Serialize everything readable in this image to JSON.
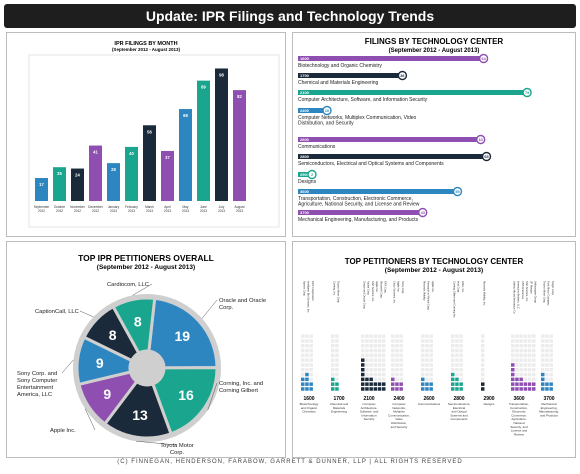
{
  "page": {
    "title": "Update: IPR Filings and Technology Trends",
    "footer": "(C) FINNEGAN, HENDERSON, FARABOW, GARRETT & DUNNER, LLP | ALL RIGHTS RESERVED"
  },
  "colors": {
    "blue": "#2e86c1",
    "teal": "#1aa58f",
    "navy": "#1b2a3a",
    "purple": "#8e4fb0"
  },
  "chart_data": [
    {
      "type": "bar",
      "title": "IPR FILINGS BY MONTH",
      "subtitle": "(September 2012 - August 2013)",
      "categories": [
        "September 2012",
        "October 2012",
        "November 2012",
        "December 2012",
        "January 2013",
        "February 2013",
        "March 2013",
        "April 2013",
        "May 2013",
        "June 2013",
        "July 2013",
        "August 2013"
      ],
      "values": [
        17,
        25,
        24,
        41,
        28,
        40,
        56,
        37,
        68,
        89,
        98,
        82
      ],
      "colors": [
        "blue",
        "teal",
        "navy",
        "purple",
        "blue",
        "teal",
        "navy",
        "purple",
        "blue",
        "teal",
        "navy",
        "purple"
      ],
      "ylim": [
        0,
        105
      ]
    },
    {
      "type": "bar",
      "orientation": "horizontal",
      "title": "FILINGS BY TECHNOLOGY CENTER",
      "subtitle": "(September 2012 - August 2013)",
      "rows": [
        {
          "code": "1600",
          "value": 64,
          "label": "Biotechnology and Organic Chemistry",
          "color": "purple"
        },
        {
          "code": "1700",
          "value": 36,
          "label": "Chemical and Materials Engineering",
          "color": "navy"
        },
        {
          "code": "2100",
          "value": 79,
          "label": "Computer Architecture, Software, and Information Security",
          "color": "teal"
        },
        {
          "code": "2400",
          "value": 10,
          "label": "Computer Networks, Multiplex Communication, Video Distribution, and Security",
          "color": "blue"
        },
        {
          "code": "2600",
          "value": 63,
          "label": "Communications",
          "color": "purple"
        },
        {
          "code": "2800",
          "value": 65,
          "label": "Semiconductors, Electrical and Optical Systems and Components",
          "color": "navy"
        },
        {
          "code": "2900",
          "value": 2,
          "label": "Designs",
          "color": "teal"
        },
        {
          "code": "3600",
          "value": 55,
          "label": "Transportation, Construction, Electronic Commerce, Agriculture, National Security, and License and Review",
          "color": "blue"
        },
        {
          "code": "3700",
          "value": 43,
          "label": "Mechanical Engineering, Manufacturing, and Products",
          "color": "purple"
        }
      ],
      "xlim": [
        0,
        80
      ]
    },
    {
      "type": "pie",
      "style": "donut",
      "title": "TOP IPR PETITIONERS OVERALL",
      "subtitle": "(September 2012 - August 2013)",
      "slices": [
        {
          "label": "Oracle and Oracle Corp.",
          "value": 19,
          "color": "blue"
        },
        {
          "label": "Corning, Inc. and Corning Gilbert",
          "value": 16,
          "color": "teal"
        },
        {
          "label": "Toyota Motor Corp.",
          "value": 13,
          "color": "navy"
        },
        {
          "label": "Apple Inc.",
          "value": 9,
          "color": "purple"
        },
        {
          "label": "Sony Corp. and Sony Computer Entertainment America, LLC",
          "value": 9,
          "color": "blue"
        },
        {
          "label": "CaptionCall, LLC",
          "value": 8,
          "color": "navy"
        },
        {
          "label": "Cardiocom, LLC",
          "value": 8,
          "color": "teal"
        }
      ]
    },
    {
      "type": "table",
      "title": "TOP PETITIONERS BY TECHNOLOGY CENTER",
      "subtitle": "(September 2012 - August 2013)",
      "groups": [
        {
          "code": "1600",
          "name": "Biotechnology and Organic Chemistry",
          "petitioners": [
            "Apotex Corp.",
            "Intelligent Bio-Systems, Inc.",
            "RPX Corporation"
          ],
          "counts": [
            3,
            4,
            2
          ],
          "color": "blue"
        },
        {
          "code": "1700",
          "name": "Chemical and Materials Engineering",
          "petitioners": [
            "Corning, Inc.",
            "Toyota Motor Corp."
          ],
          "counts": [
            3,
            2
          ],
          "color": "teal"
        },
        {
          "code": "2100",
          "name": "Computer Architecture, Software, and Information Security",
          "petitioners": [
            "Oracle and Oracle Corp.",
            "Nichia Corp.",
            "SAP America, Inc.",
            "Apple Inc.",
            "Microsoft Corp.",
            "RPX Corp."
          ],
          "counts": [
            7,
            3,
            3,
            2,
            2,
            2
          ],
          "color": "navy"
        },
        {
          "code": "2400",
          "name": "Computer Networks, Multiplex Communication, Video Distribution, and Security",
          "petitioners": [
            "Cisco Systems, Inc.",
            "Apple Inc.",
            "Sony Corp."
          ],
          "counts": [
            3,
            2,
            2
          ],
          "color": "purple"
        },
        {
          "code": "2600",
          "name": "Communications",
          "petitioners": [
            "Motorola Mobility",
            "Research in Motion Corp.",
            "Apple Inc."
          ],
          "counts": [
            3,
            2,
            2
          ],
          "color": "blue"
        },
        {
          "code": "2800",
          "name": "Semiconductors, Electrical and Optical Systems and Components",
          "petitioners": [
            "Corning Gilbert and Corning Inc.",
            "Intel Corp.",
            "Xilinx, Inc."
          ],
          "counts": [
            4,
            3,
            2
          ],
          "color": "teal"
        },
        {
          "code": "2900",
          "name": "Designs",
          "petitioners": [
            "Motorola Mobility, Inc."
          ],
          "counts": [
            2
          ],
          "color": "navy"
        },
        {
          "code": "3600",
          "name": "Transportation, Construction, Electronic Commerce, Agriculture, National Security, and License and Review",
          "petitioners": [
            "Liberty Mutual Insurance Co.",
            "Interactive Brokers, LLC",
            "CBS Interactive",
            "SAP America, Inc.",
            "JP Morgan",
            "Volkswagen Group"
          ],
          "counts": [
            6,
            3,
            3,
            2,
            2,
            2
          ],
          "color": "purple"
        },
        {
          "code": "3700",
          "name": "Mechanical Engineering, Manufacturing, and Products",
          "petitioners": [
            "Toyota Motor Corp.",
            "Ford Motor Company",
            "Target Corp."
          ],
          "counts": [
            4,
            2,
            2
          ],
          "color": "blue"
        }
      ]
    }
  ]
}
